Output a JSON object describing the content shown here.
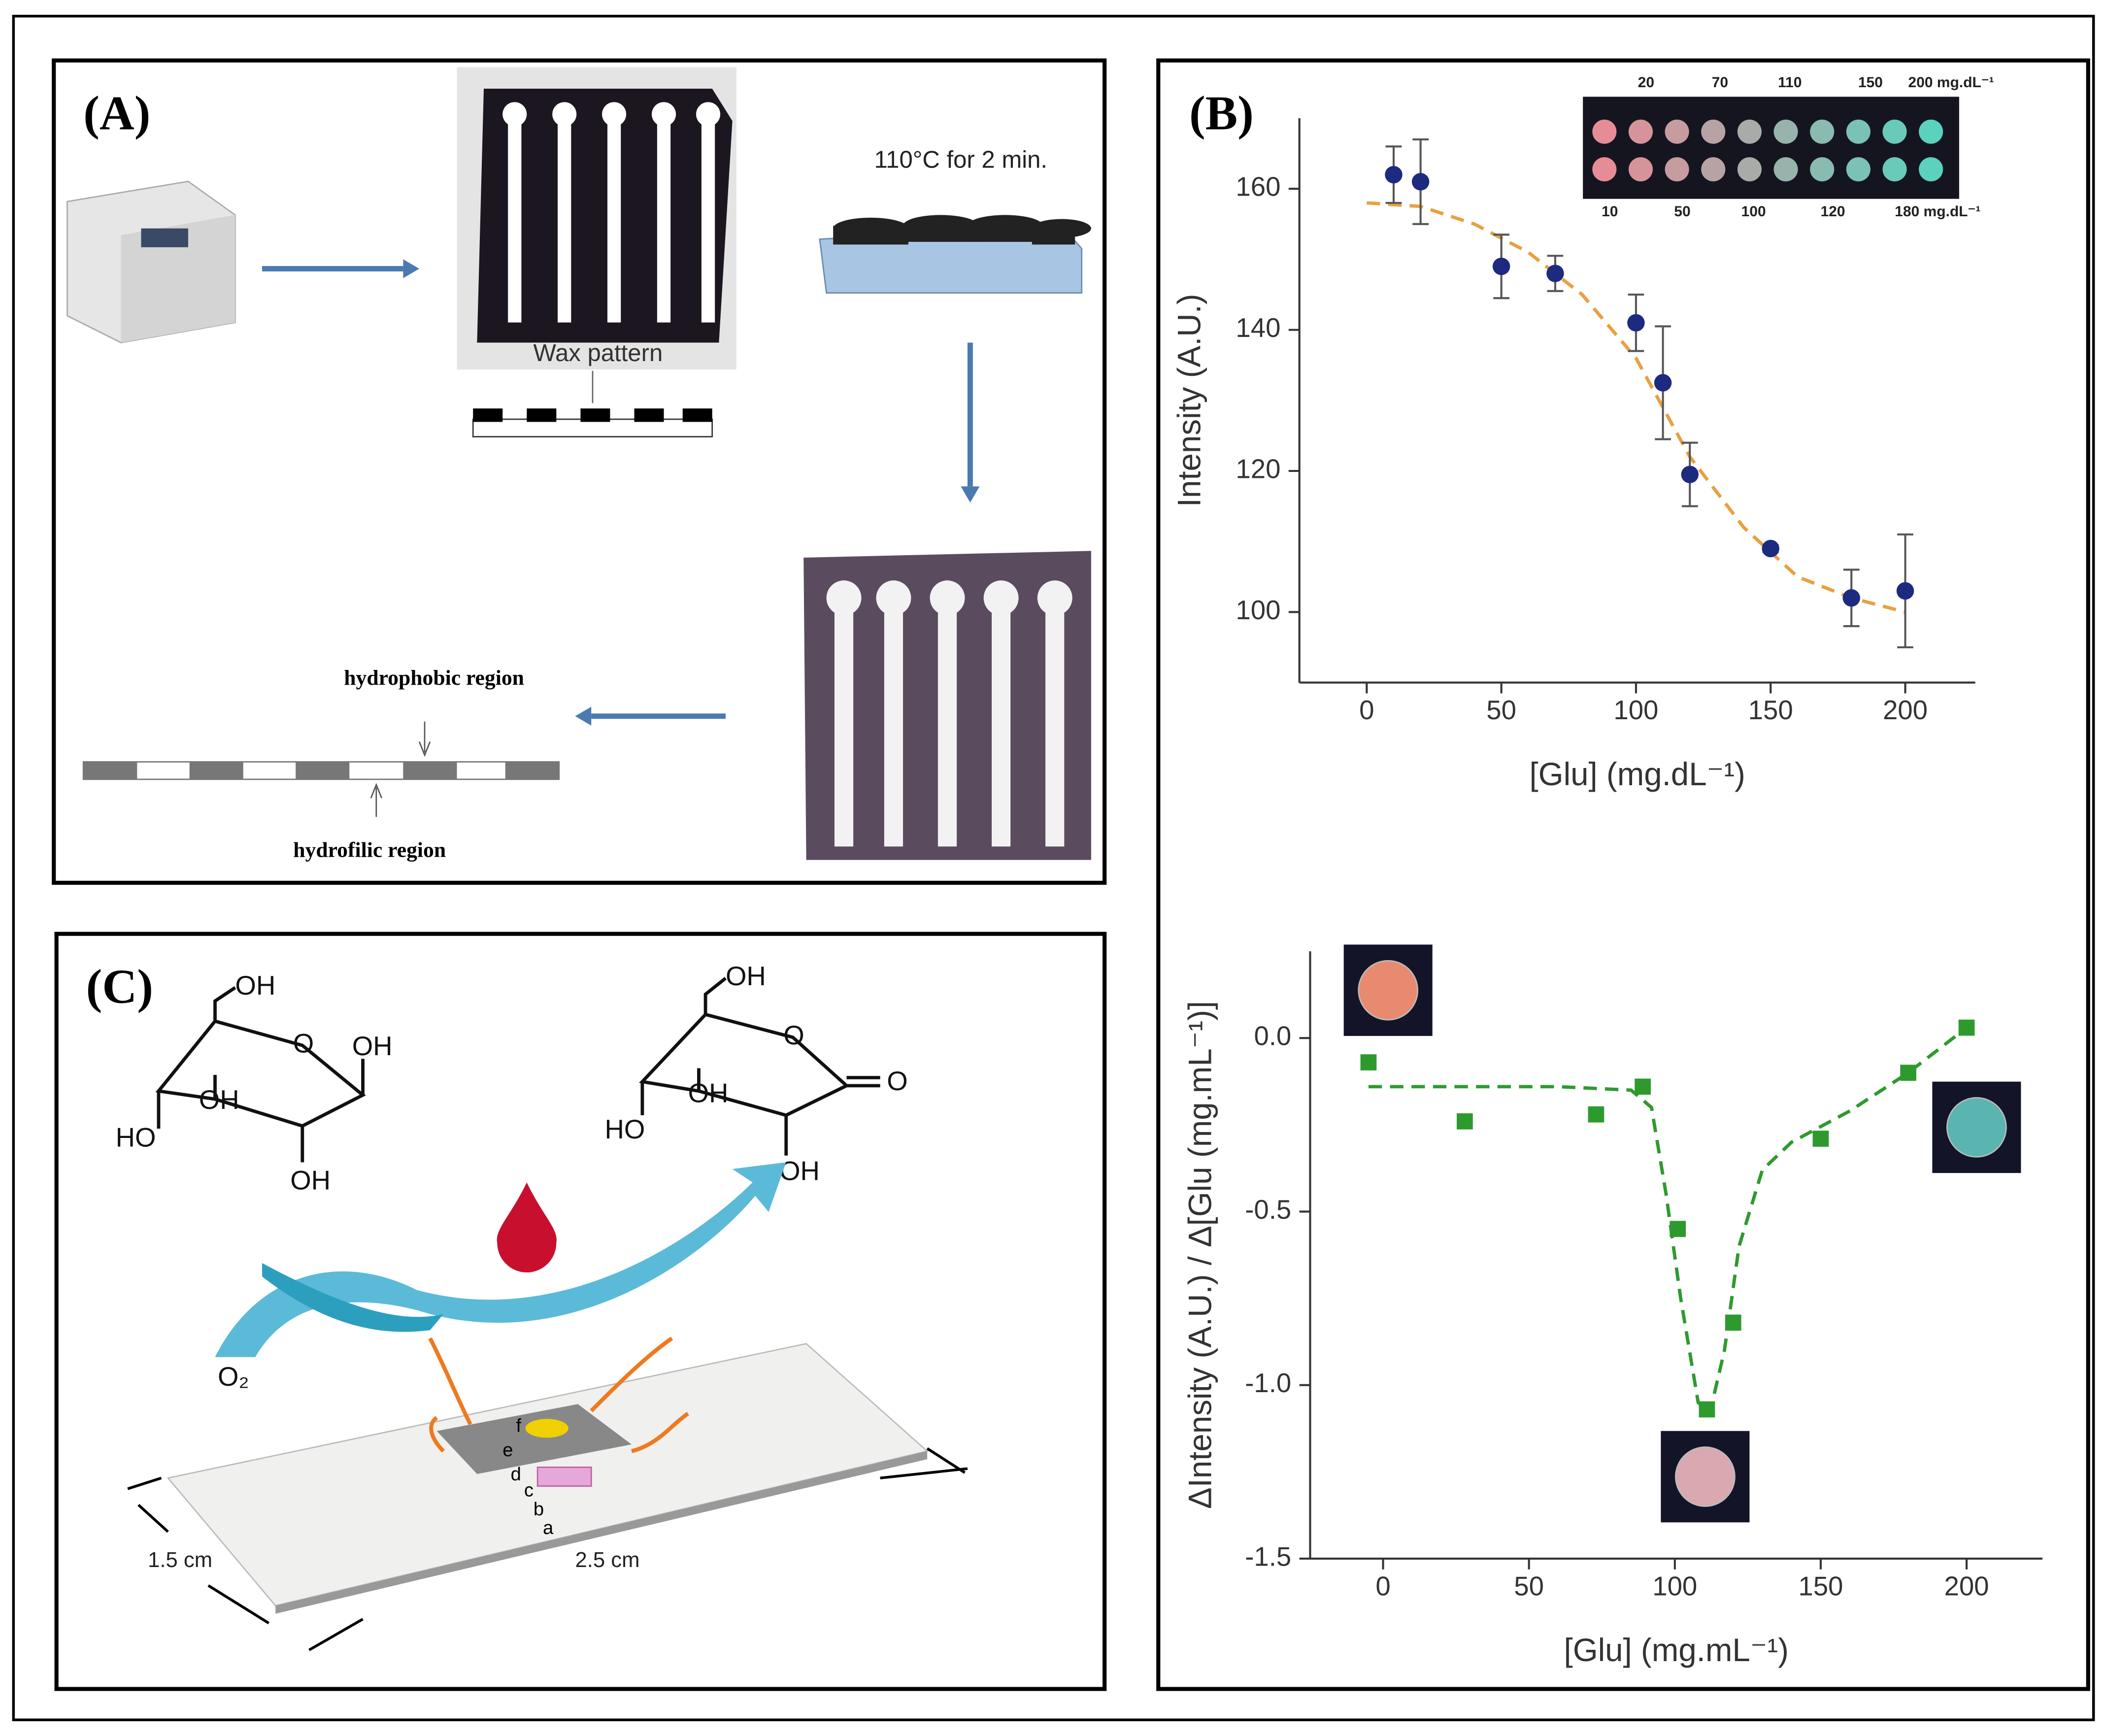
{
  "panels": {
    "A": {
      "label": "(A)",
      "heat_step": "110°C for 2 min.",
      "wax": "Wax pattern",
      "hydrophobic": "hydrophobic region",
      "hydrofilic": "hydrofilic region"
    },
    "B": {
      "label": "(B)"
    },
    "C": {
      "label": "(C)",
      "labels": [
        "OH",
        "OH",
        "OH",
        "HO",
        "OH",
        "O",
        "OH",
        "OH",
        "HO",
        "OH",
        "O",
        "O",
        "O₂",
        "f",
        "e",
        "d",
        "c",
        "b",
        "a",
        "1.5 cm",
        "2.5 cm"
      ]
    }
  },
  "chart_data": [
    {
      "type": "scatter",
      "ylabel": "Intensity (A.U.)",
      "xlabel": "[Glu] (mg.dL⁻¹)",
      "x": [
        10,
        20,
        50,
        70,
        100,
        110,
        120,
        150,
        180,
        200
      ],
      "series": [
        {
          "color": "#1c2a80",
          "values": [
            162,
            161,
            149,
            148,
            141,
            132.5,
            119.5,
            109,
            102,
            103
          ],
          "errors": [
            4,
            6,
            4.5,
            2.5,
            4,
            8,
            4.5,
            0.5,
            4,
            8
          ]
        }
      ],
      "fit": {
        "color": "#e8a040",
        "x": [
          0,
          20,
          40,
          60,
          80,
          100,
          120,
          140,
          160,
          180,
          200
        ],
        "values": [
          158,
          157.5,
          155,
          151,
          145,
          136,
          122,
          112,
          105,
          102,
          100
        ]
      },
      "xlim": [
        -25,
        226
      ],
      "ylim": [
        90,
        170
      ],
      "xticks": [
        0,
        50,
        100,
        150,
        200
      ],
      "yticks": [
        100,
        120,
        140,
        160
      ],
      "inset_top": [
        "20",
        "70",
        "110",
        "150",
        "200 mg.dL⁻¹"
      ],
      "inset_bottom": [
        "10",
        "50",
        "100",
        "120",
        "180 mg.dL⁻¹"
      ]
    },
    {
      "type": "scatter",
      "ylabel": "ΔIntensity (A.U.) / Δ[Glu (mg.mL⁻¹)]",
      "xlabel": "[Glu] (mg.mL⁻¹)",
      "x": [
        -5,
        28,
        73,
        89,
        101,
        111,
        120,
        150,
        180,
        200
      ],
      "series": [
        {
          "color": "#2e9a2e",
          "values": [
            -0.07,
            -0.24,
            -0.22,
            -0.14,
            -0.55,
            -1.07,
            -0.82,
            -0.29,
            -0.1,
            0.03
          ]
        }
      ],
      "fit": {
        "color": "#2e9a2e",
        "x": [
          -5,
          20,
          60,
          85,
          92,
          97,
          102,
          108,
          112,
          117,
          122,
          130,
          140,
          160,
          180,
          200
        ],
        "values": [
          -0.14,
          -0.14,
          -0.14,
          -0.15,
          -0.2,
          -0.45,
          -0.75,
          -1.05,
          -1.08,
          -0.9,
          -0.6,
          -0.38,
          -0.3,
          -0.21,
          -0.1,
          0.03
        ]
      },
      "xlim": [
        -25,
        226
      ],
      "ylim": [
        -1.5,
        0.25
      ],
      "xticks": [
        0,
        50,
        100,
        150,
        200
      ],
      "yticks": [
        -1.5,
        {
          "value": -1,
          "label": "-1.0"
        },
        -0.5,
        {
          "value": 0,
          "label": "0.0"
        }
      ]
    }
  ]
}
